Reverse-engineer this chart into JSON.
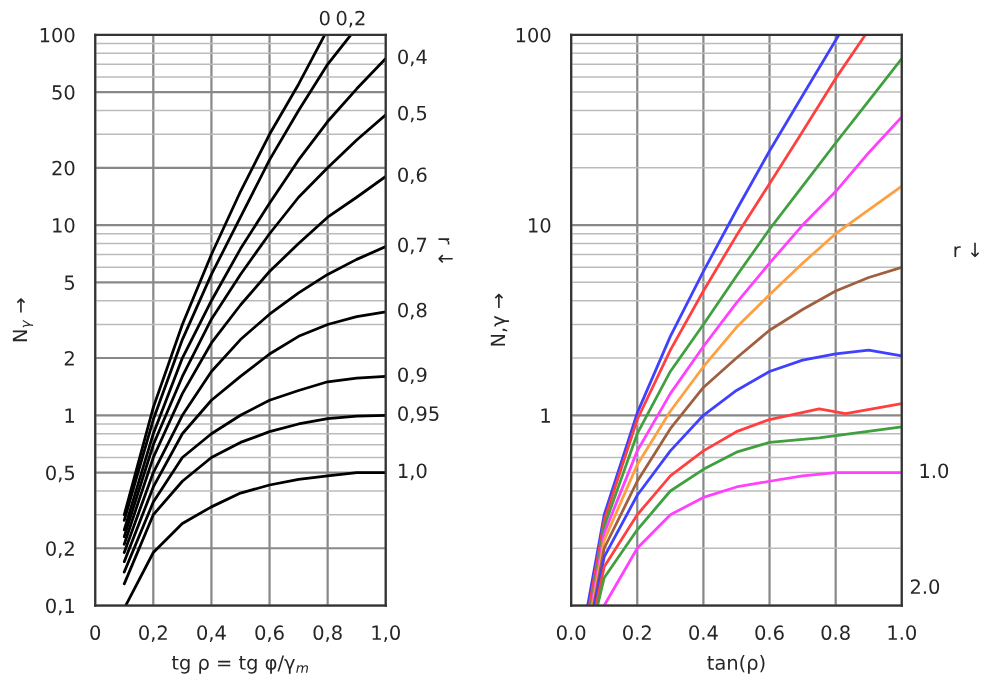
{
  "chart_data": [
    {
      "type": "line",
      "xlabel": "tg ρ = tg φ/γ$_{m}$",
      "ylabel": "N$_{γ}$ →",
      "log": "y",
      "grid": true,
      "legend": false,
      "marker": "none",
      "line_style": "solid",
      "xlim": [
        0,
        1
      ],
      "xticks": [
        0,
        {
          "value": 0.2,
          "label": "0,2"
        },
        {
          "value": 0.4,
          "label": "0,4"
        },
        {
          "value": 0.6,
          "label": "0,6"
        },
        {
          "value": 0.8,
          "label": "0,8"
        },
        {
          "value": 1.0,
          "label": "1,0"
        }
      ],
      "ylim": [
        0.1,
        100
      ],
      "yticks": [
        {
          "value": 0.1,
          "label": "0,1"
        },
        {
          "value": 0.2,
          "label": "0,2"
        },
        {
          "value": 0.5,
          "label": "0,5"
        },
        1,
        2,
        5,
        10,
        20,
        50,
        100
      ],
      "annotations": [
        "r ↓"
      ],
      "series": [
        {
          "name": "0",
          "color": "#000000",
          "x": [
            0.1,
            0.2,
            0.3,
            0.4,
            0.5,
            0.6,
            0.7,
            0.79
          ],
          "values": [
            0.3,
            1.1,
            3,
            7,
            15,
            30,
            55,
            100
          ]
        },
        {
          "name": "0,2",
          "color": "#000000",
          "x": [
            0.1,
            0.2,
            0.3,
            0.4,
            0.5,
            0.6,
            0.7,
            0.8,
            0.88
          ],
          "values": [
            0.28,
            0.95,
            2.5,
            5.5,
            11,
            22,
            40,
            70,
            100
          ]
        },
        {
          "name": "0,4",
          "color": "#000000",
          "x": [
            0.1,
            0.2,
            0.3,
            0.4,
            0.5,
            0.6,
            0.7,
            0.8,
            0.9,
            1.0
          ],
          "values": [
            0.25,
            0.8,
            2,
            4,
            7.5,
            13,
            22,
            35,
            52,
            75
          ]
        },
        {
          "name": "0,5",
          "color": "#000000",
          "x": [
            0.1,
            0.2,
            0.3,
            0.4,
            0.5,
            0.6,
            0.7,
            0.8,
            0.9,
            1.0
          ],
          "values": [
            0.23,
            0.7,
            1.6,
            3.2,
            5.5,
            9,
            14,
            20,
            28,
            38
          ]
        },
        {
          "name": "0,6",
          "color": "#000000",
          "x": [
            0.1,
            0.2,
            0.3,
            0.4,
            0.5,
            0.6,
            0.7,
            0.8,
            0.9,
            1.0
          ],
          "values": [
            0.21,
            0.6,
            1.3,
            2.4,
            3.8,
            5.7,
            8,
            11,
            14,
            18
          ]
        },
        {
          "name": "0,7",
          "color": "#000000",
          "x": [
            0.1,
            0.2,
            0.3,
            0.4,
            0.5,
            0.6,
            0.7,
            0.8,
            0.9,
            1.0
          ],
          "values": [
            0.19,
            0.5,
            1.0,
            1.7,
            2.5,
            3.4,
            4.4,
            5.5,
            6.6,
            7.7
          ]
        },
        {
          "name": "0,8",
          "color": "#000000",
          "x": [
            0.1,
            0.2,
            0.3,
            0.4,
            0.5,
            0.6,
            0.7,
            0.8,
            0.9,
            1.0
          ],
          "values": [
            0.17,
            0.42,
            0.8,
            1.2,
            1.6,
            2.1,
            2.6,
            3.0,
            3.3,
            3.5
          ]
        },
        {
          "name": "0,9",
          "color": "#000000",
          "x": [
            0.1,
            0.2,
            0.3,
            0.4,
            0.5,
            0.6,
            0.7,
            0.8,
            0.9,
            1.0
          ],
          "values": [
            0.15,
            0.35,
            0.6,
            0.8,
            1.0,
            1.2,
            1.35,
            1.5,
            1.57,
            1.6
          ]
        },
        {
          "name": "0,95",
          "color": "#000000",
          "x": [
            0.1,
            0.2,
            0.3,
            0.4,
            0.5,
            0.6,
            0.7,
            0.8,
            0.9,
            1.0
          ],
          "values": [
            0.13,
            0.3,
            0.45,
            0.6,
            0.72,
            0.82,
            0.9,
            0.96,
            0.99,
            1.0
          ]
        },
        {
          "name": "1,0",
          "color": "#000000",
          "x": [
            0.105,
            0.2,
            0.3,
            0.4,
            0.5,
            0.6,
            0.7,
            0.8,
            0.9,
            1.0
          ],
          "values": [
            0.1,
            0.19,
            0.27,
            0.33,
            0.39,
            0.43,
            0.46,
            0.48,
            0.5,
            0.5
          ]
        }
      ]
    },
    {
      "type": "line",
      "xlabel": "tan(ρ)",
      "ylabel": "N,γ →",
      "log": "y",
      "grid": true,
      "legend": false,
      "marker": "none",
      "line_style": "solid",
      "xlim": [
        0,
        1
      ],
      "xticks": [
        {
          "value": 0,
          "label": "0.0"
        },
        0.2,
        0.4,
        0.6,
        0.8,
        {
          "value": 1.0,
          "label": "1.0"
        }
      ],
      "ylim": [
        0.1,
        100
      ],
      "yticks": [
        {
          "value": 0.1,
          "label": null
        },
        1,
        10,
        100
      ],
      "annotations": [
        "r ↓",
        {
          "text": "1.0",
          "x": 1.0,
          "y": 0.5
        },
        "2.0"
      ],
      "series": [
        {
          "color": "#4040ff",
          "x": [
            0.05,
            0.1,
            0.2,
            0.3,
            0.4,
            0.5,
            0.6,
            0.7,
            0.81
          ],
          "values": [
            0.1,
            0.3,
            1.03,
            2.6,
            5.7,
            12,
            24.5,
            48,
            100
          ]
        },
        {
          "color": "#ff4040",
          "x": [
            0.055,
            0.1,
            0.2,
            0.3,
            0.4,
            0.5,
            0.6,
            0.7,
            0.8,
            0.89
          ],
          "values": [
            0.1,
            0.28,
            0.95,
            2.2,
            4.5,
            8.8,
            16.5,
            31,
            59,
            100
          ]
        },
        {
          "color": "#40a040",
          "x": [
            0.06,
            0.1,
            0.2,
            0.3,
            0.4,
            0.5,
            0.6,
            0.7,
            0.8,
            0.9,
            1.0
          ],
          "values": [
            0.1,
            0.26,
            0.8,
            1.7,
            3.0,
            5.4,
            9.5,
            16,
            27,
            45,
            75
          ]
        },
        {
          "color": "#ff40ff",
          "x": [
            0.062,
            0.1,
            0.2,
            0.3,
            0.4,
            0.5,
            0.6,
            0.7,
            0.8,
            0.9,
            1.0
          ],
          "values": [
            0.1,
            0.24,
            0.65,
            1.3,
            2.3,
            3.9,
            6.3,
            10,
            15,
            24,
            37
          ]
        },
        {
          "color": "#ffa040",
          "x": [
            0.065,
            0.1,
            0.2,
            0.3,
            0.4,
            0.5,
            0.6,
            0.7,
            0.8,
            0.9,
            1.0
          ],
          "values": [
            0.1,
            0.22,
            0.55,
            1.05,
            1.8,
            2.9,
            4.3,
            6.3,
            9,
            12,
            16
          ]
        },
        {
          "color": "#a06040",
          "x": [
            0.068,
            0.1,
            0.2,
            0.3,
            0.4,
            0.5,
            0.6,
            0.7,
            0.8,
            0.9,
            1.0
          ],
          "values": [
            0.1,
            0.2,
            0.45,
            0.85,
            1.4,
            2.0,
            2.8,
            3.6,
            4.5,
            5.3,
            6.0
          ]
        },
        {
          "color": "#4040ff",
          "x": [
            0.07,
            0.1,
            0.2,
            0.3,
            0.4,
            0.5,
            0.6,
            0.7,
            0.8,
            0.9,
            1.0
          ],
          "values": [
            0.1,
            0.18,
            0.38,
            0.65,
            1.0,
            1.35,
            1.7,
            1.95,
            2.1,
            2.2,
            2.05
          ]
        },
        {
          "color": "#ff4040",
          "x": [
            0.075,
            0.1,
            0.2,
            0.3,
            0.4,
            0.5,
            0.6,
            0.75,
            0.83,
            1.0
          ],
          "values": [
            0.1,
            0.16,
            0.3,
            0.48,
            0.65,
            0.82,
            0.95,
            1.08,
            1.02,
            1.15
          ]
        },
        {
          "color": "#40a040",
          "x": [
            0.08,
            0.1,
            0.2,
            0.3,
            0.4,
            0.5,
            0.6,
            0.75,
            1.0
          ],
          "values": [
            0.1,
            0.14,
            0.25,
            0.4,
            0.52,
            0.64,
            0.72,
            0.76,
            0.87
          ]
        },
        {
          "color": "#ff40ff",
          "x": [
            0.1,
            0.2,
            0.3,
            0.4,
            0.5,
            0.6,
            0.7,
            0.8,
            0.9,
            1.0
          ],
          "values": [
            0.1,
            0.2,
            0.3,
            0.37,
            0.42,
            0.45,
            0.48,
            0.5,
            0.5,
            0.5
          ]
        }
      ]
    }
  ]
}
